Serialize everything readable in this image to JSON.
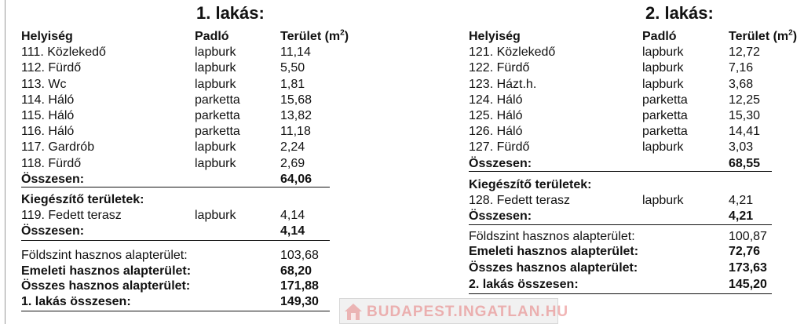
{
  "apartments": [
    {
      "title": "1. lakás:",
      "headers": {
        "room": "Helyiség",
        "floor": "Padló",
        "area": "Terület (m",
        "area_sup": "2",
        "area_close": ")"
      },
      "rooms": [
        {
          "name": "111. Közlekedő",
          "floor": "lapburk",
          "area": "11,14"
        },
        {
          "name": "112. Fürdő",
          "floor": "lapburk",
          "area": "5,50"
        },
        {
          "name": "113. Wc",
          "floor": "lapburk",
          "area": "1,81"
        },
        {
          "name": "114. Háló",
          "floor": "parketta",
          "area": "15,68"
        },
        {
          "name": "115. Háló",
          "floor": "parketta",
          "area": "13,82"
        },
        {
          "name": "116. Háló",
          "floor": "parketta",
          "area": "11,18"
        },
        {
          "name": "117. Gardrób",
          "floor": "lapburk",
          "area": "2,24"
        },
        {
          "name": "118. Fürdő",
          "floor": "lapburk",
          "area": "2,69"
        }
      ],
      "rooms_total": {
        "label": "Összesen:",
        "value": "64,06"
      },
      "extra_title": "Kiegészítő területek:",
      "extra": [
        {
          "name": "119. Fedett terasz",
          "floor": "lapburk",
          "area": "4,14"
        }
      ],
      "extra_total": {
        "label": "Összesen:",
        "value": "4,14"
      },
      "summary": [
        {
          "label": "Földszint hasznos alapterület:",
          "value": "103,68",
          "bold": false
        },
        {
          "label": "Emeleti hasznos alapterület:",
          "value": "68,20",
          "bold": true
        },
        {
          "label": "Összes hasznos alapterület:",
          "value": "171,88",
          "bold": true
        },
        {
          "label": "1. lakás összesen:",
          "value": "149,30",
          "bold": true
        }
      ]
    },
    {
      "title": "2. lakás:",
      "headers": {
        "room": "Helyiség",
        "floor": "Padló",
        "area": "Terület (m",
        "area_sup": "2",
        "area_close": ")"
      },
      "rooms": [
        {
          "name": "121. Közlekedő",
          "floor": "lapburk",
          "area": "12,72"
        },
        {
          "name": "122. Fürdő",
          "floor": "lapburk",
          "area": "7,16"
        },
        {
          "name": "123. Házt.h.",
          "floor": "lapburk",
          "area": "3,68"
        },
        {
          "name": "124. Háló",
          "floor": "parketta",
          "area": "12,25"
        },
        {
          "name": "125. Háló",
          "floor": "parketta",
          "area": "15,30"
        },
        {
          "name": "126. Háló",
          "floor": "parketta",
          "area": "14,41"
        },
        {
          "name": "127. Fürdő",
          "floor": "lapburk",
          "area": "3,03"
        }
      ],
      "rooms_total": {
        "label": "Összesen:",
        "value": "68,55"
      },
      "extra_title": "Kiegészítő területek:",
      "extra": [
        {
          "name": "128. Fedett terasz",
          "floor": "lapburk",
          "area": "4,21"
        }
      ],
      "extra_total": {
        "label": "Összesen:",
        "value": "4,21"
      },
      "summary": [
        {
          "label": "Földszint hasznos alapterület:",
          "value": "100,87",
          "bold": false
        },
        {
          "label": "Emeleti hasznos alapterület:",
          "value": "72,76",
          "bold": true
        },
        {
          "label": "Összes hasznos alapterület:",
          "value": "173,63",
          "bold": true
        },
        {
          "label": "2. lakás összesen:",
          "value": "145,20",
          "bold": true
        }
      ]
    }
  ],
  "watermark": {
    "text": "BUDAPEST.INGATLAN.HU",
    "icon": "house-icon",
    "color": "#e67878"
  }
}
